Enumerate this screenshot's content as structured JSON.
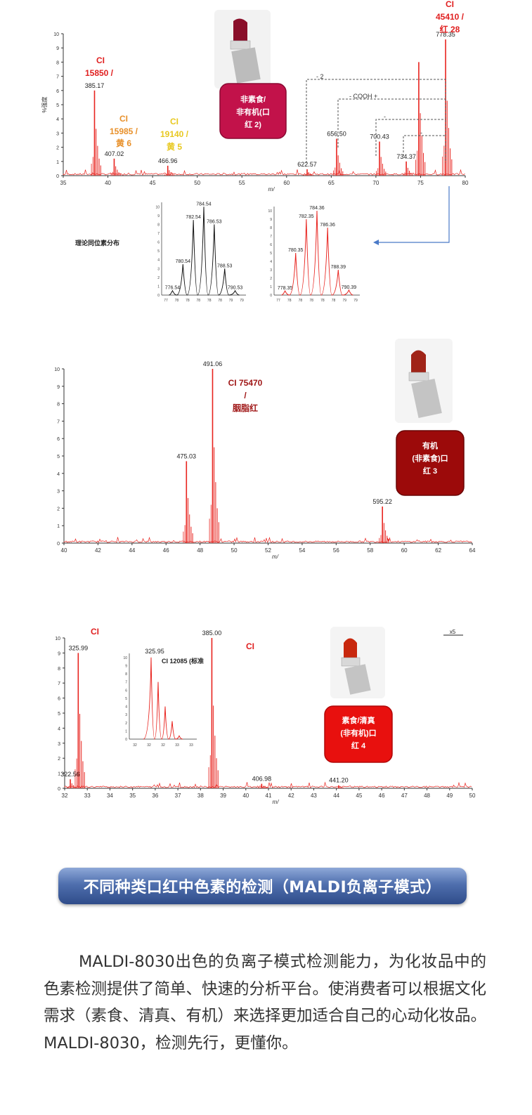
{
  "chart_data": [
    {
      "type": "line",
      "xlabel": "m/",
      "ylabel": "%强度",
      "xlim": [
        35,
        80
      ],
      "ylim": [
        0,
        10
      ],
      "x_ticks": [
        "35",
        "40",
        "45",
        "50",
        "55",
        "60",
        "65",
        "70",
        "75",
        "80"
      ],
      "y_ticks": [
        "0",
        "1",
        "2",
        "3",
        "4",
        "5",
        "6",
        "7",
        "8",
        "9",
        "10"
      ],
      "peaks": [
        {
          "x": 38.5,
          "y": 6.0,
          "label": "385.17"
        },
        {
          "x": 40.7,
          "y": 1.2,
          "label": "407.02"
        },
        {
          "x": 46.7,
          "y": 0.7,
          "label": "466.96"
        },
        {
          "x": 62.3,
          "y": 0.45,
          "label": "622.57"
        },
        {
          "x": 65.6,
          "y": 2.6,
          "label": "656.50"
        },
        {
          "x": 70.4,
          "y": 2.4,
          "label": "700.43"
        },
        {
          "x": 73.4,
          "y": 1.0,
          "label": "734.37"
        },
        {
          "x": 74.8,
          "y": 8.0,
          "label": ""
        },
        {
          "x": 77.8,
          "y": 9.6,
          "label": "778.35"
        }
      ],
      "annotations": [
        {
          "lines": [
            "CI",
            "15850 /"
          ],
          "color": "#e02020"
        },
        {
          "lines": [
            "CI",
            "15985 /",
            "黄 6"
          ],
          "color": "#e8902a"
        },
        {
          "lines": [
            "CI",
            "19140 /",
            "黄 5"
          ],
          "color": "#e8c820"
        },
        {
          "lines": [
            "CI",
            "45410 /",
            "红 28"
          ],
          "color": "#e02020"
        }
      ],
      "bracket_labels": [
        "- 2",
        "- COOH +",
        "-",
        "-"
      ],
      "badge": {
        "lines": [
          "非素食/",
          "非有机(口",
          "红 2)"
        ],
        "color": "#c2124a"
      },
      "inset_title": "理论同位素分布",
      "inset_theory": {
        "peaks": [
          {
            "x": 776,
            "y": 0.5,
            "label": "776.54"
          },
          {
            "x": 778,
            "y": 3.5,
            "label": "780.54"
          },
          {
            "x": 780,
            "y": 8.5,
            "label": "782.54"
          },
          {
            "x": 782,
            "y": 10.0,
            "label": "784.54"
          },
          {
            "x": 784,
            "y": 8.0,
            "label": "786.53"
          },
          {
            "x": 786,
            "y": 3.0,
            "label": "788.53"
          },
          {
            "x": 788,
            "y": 0.5,
            "label": "790.53"
          }
        ],
        "x_ticks": [
          "77",
          "78",
          "78",
          "78",
          "78",
          "78",
          "79",
          "79"
        ]
      },
      "inset_measured": {
        "peaks": [
          {
            "x": 776,
            "y": 0.5,
            "label": "778.35"
          },
          {
            "x": 778,
            "y": 5.0,
            "label": "780.35"
          },
          {
            "x": 780,
            "y": 9.0,
            "label": "782.35"
          },
          {
            "x": 782,
            "y": 10.0,
            "label": "784.36"
          },
          {
            "x": 784,
            "y": 8.0,
            "label": "786.36"
          },
          {
            "x": 786,
            "y": 3.0,
            "label": "788.39"
          },
          {
            "x": 788,
            "y": 0.6,
            "label": "790.39"
          }
        ],
        "x_ticks": [
          "77",
          "78",
          "78",
          "78",
          "78",
          "78",
          "79",
          "79"
        ]
      }
    },
    {
      "type": "line",
      "xlabel": "m/",
      "ylabel": "",
      "xlim": [
        40,
        65
      ],
      "ylim": [
        0,
        10
      ],
      "x_ticks": [
        "40",
        "42",
        "44",
        "46",
        "48",
        "50",
        "52",
        "54",
        "56",
        "58",
        "60",
        "62",
        "64"
      ],
      "y_ticks": [
        "0",
        "1",
        "2",
        "3",
        "4",
        "5",
        "6",
        "7",
        "8",
        "9",
        "10"
      ],
      "peaks": [
        {
          "x": 47.5,
          "y": 4.7,
          "label": "475.03"
        },
        {
          "x": 49.1,
          "y": 10.0,
          "label": "491.06"
        },
        {
          "x": 59.5,
          "y": 2.1,
          "label": "595.22"
        }
      ],
      "annotations": [
        {
          "lines": [
            "CI 75470",
            "/",
            "胭脂红"
          ],
          "color": "#a01818"
        }
      ],
      "badge": {
        "lines": [
          "有机",
          "(非素食)口",
          "红 3"
        ],
        "color": "#9c0a0a"
      }
    },
    {
      "type": "line",
      "xlabel": "m/",
      "ylabel": "",
      "xlim": [
        32,
        50
      ],
      "ylim": [
        0,
        10
      ],
      "x_ticks": [
        "32",
        "33",
        "34",
        "35",
        "36",
        "37",
        "38",
        "39",
        "40",
        "41",
        "42",
        "43",
        "44",
        "45",
        "46",
        "47",
        "48",
        "49",
        "50"
      ],
      "y_ticks": [
        "0",
        "1",
        "2",
        "3",
        "4",
        "5",
        "6",
        "7",
        "8",
        "9",
        "10"
      ],
      "peaks": [
        {
          "x": 32.25,
          "y": 0.6,
          "label": "322.56"
        },
        {
          "x": 32.6,
          "y": 9.0,
          "label": "325.99"
        },
        {
          "x": 38.5,
          "y": 10.0,
          "label": "385.00"
        },
        {
          "x": 40.7,
          "y": 0.3,
          "label": "406.98"
        },
        {
          "x": 44.1,
          "y": 0.2,
          "label": "441.20"
        }
      ],
      "annotations": [
        {
          "lines": [
            "CI"
          ],
          "color": "#e02020"
        },
        {
          "lines": [
            "CI"
          ],
          "color": "#e02020"
        }
      ],
      "x5_label": "x5",
      "badge": {
        "lines": [
          "素食/清真",
          "(非有机)口",
          "红 4"
        ],
        "color": "#e8100e"
      },
      "inset_label": "325.95",
      "inset_title": "CI 12085 (标准",
      "inset_ticks": [
        "32",
        "32",
        "32",
        "33",
        "33"
      ]
    }
  ],
  "banner": "不同种类口红中色素的检测（MALDI负离子模式）",
  "paragraph": "MALDI-8030出色的负离子模式检测能力，为化妆品中的色素检测提供了简单、快速的分析平台。使消费者可以根据文化需求（素食、清真、有机）来选择更加适合自己的心动化妆品。MALDI-8030，检测先行，更懂你。"
}
